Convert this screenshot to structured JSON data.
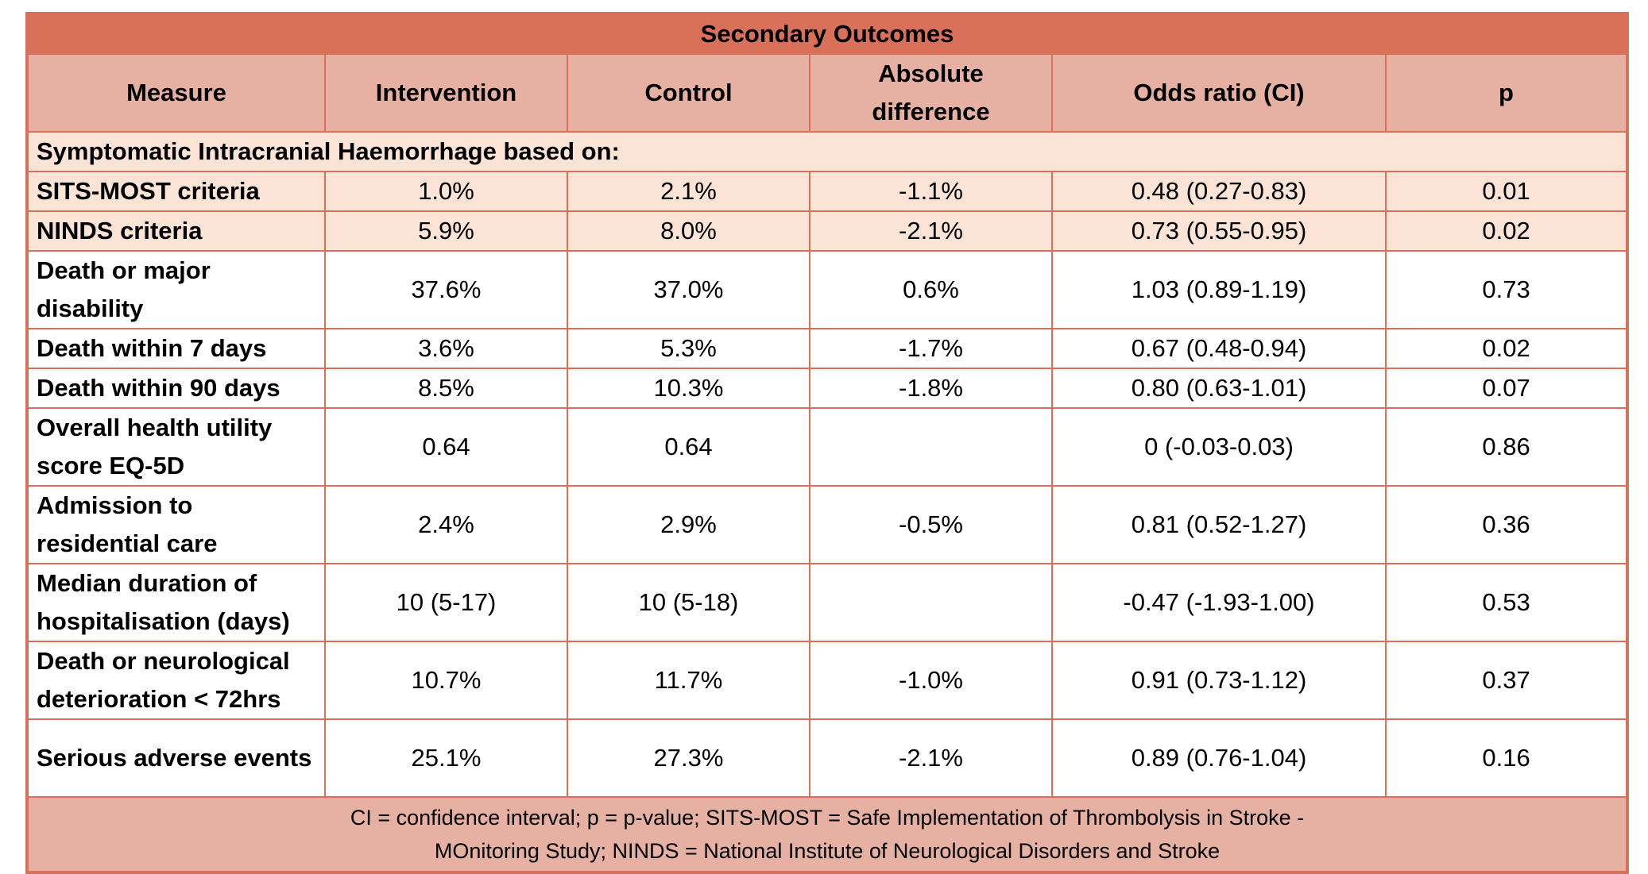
{
  "table": {
    "title": "Secondary Outcomes",
    "headers": [
      "Measure",
      "Intervention",
      "Control",
      "Absolute difference",
      "Odds ratio (CI)",
      "p"
    ],
    "section_label": "Symptomatic Intracranial Haemorrhage based on:",
    "rows": [
      {
        "measure": "SITS-MOST criteria",
        "intervention": "1.0%",
        "control": "2.1%",
        "absolute_difference": "-1.1%",
        "odds_ratio": "0.48 (0.27-0.83)",
        "p": "0.01"
      },
      {
        "measure": "NINDS criteria",
        "intervention": "5.9%",
        "control": "8.0%",
        "absolute_difference": "-2.1%",
        "odds_ratio": "0.73 (0.55-0.95)",
        "p": "0.02"
      },
      {
        "measure": "Death or major disability",
        "intervention": "37.6%",
        "control": "37.0%",
        "absolute_difference": "0.6%",
        "odds_ratio": "1.03 (0.89-1.19)",
        "p": "0.73"
      },
      {
        "measure": "Death within 7 days",
        "intervention": "3.6%",
        "control": "5.3%",
        "absolute_difference": "-1.7%",
        "odds_ratio": "0.67 (0.48-0.94)",
        "p": "0.02"
      },
      {
        "measure": "Death within 90 days",
        "intervention": "8.5%",
        "control": "10.3%",
        "absolute_difference": "-1.8%",
        "odds_ratio": "0.80 (0.63-1.01)",
        "p": "0.07"
      },
      {
        "measure": "Overall health utility score EQ-5D",
        "intervention": "0.64",
        "control": "0.64",
        "absolute_difference": "",
        "odds_ratio": "0 (-0.03-0.03)",
        "p": "0.86"
      },
      {
        "measure": "Admission to residential care",
        "intervention": "2.4%",
        "control": "2.9%",
        "absolute_difference": "-0.5%",
        "odds_ratio": "0.81 (0.52-1.27)",
        "p": "0.36"
      },
      {
        "measure": "Median duration of hospitalisation (days)",
        "intervention": "10 (5-17)",
        "control": "10 (5-18)",
        "absolute_difference": "",
        "odds_ratio": "-0.47 (-1.93-1.00)",
        "p": "0.53"
      },
      {
        "measure": "Death or neurological deterioration < 72hrs",
        "intervention": "10.7%",
        "control": "11.7%",
        "absolute_difference": "-1.0%",
        "odds_ratio": "0.91 (0.73-1.12)",
        "p": "0.37"
      },
      {
        "measure": "Serious adverse events",
        "intervention": "25.1%",
        "control": "27.3%",
        "absolute_difference": "-2.1%",
        "odds_ratio": "0.89 (0.76-1.04)",
        "p": "0.16"
      }
    ],
    "footnote_line1": "CI = confidence interval; p = p-value; SITS-MOST =  Safe Implementation of Thrombolysis in Stroke -",
    "footnote_line2": "MOnitoring Study; NINDS = National Institute of Neurological Disorders and Stroke"
  },
  "colors": {
    "title_bg": "#d9705a",
    "header_bg": "#e6b1a2",
    "shaded_row_bg": "#fbe3d6",
    "border": "#d9705a"
  }
}
